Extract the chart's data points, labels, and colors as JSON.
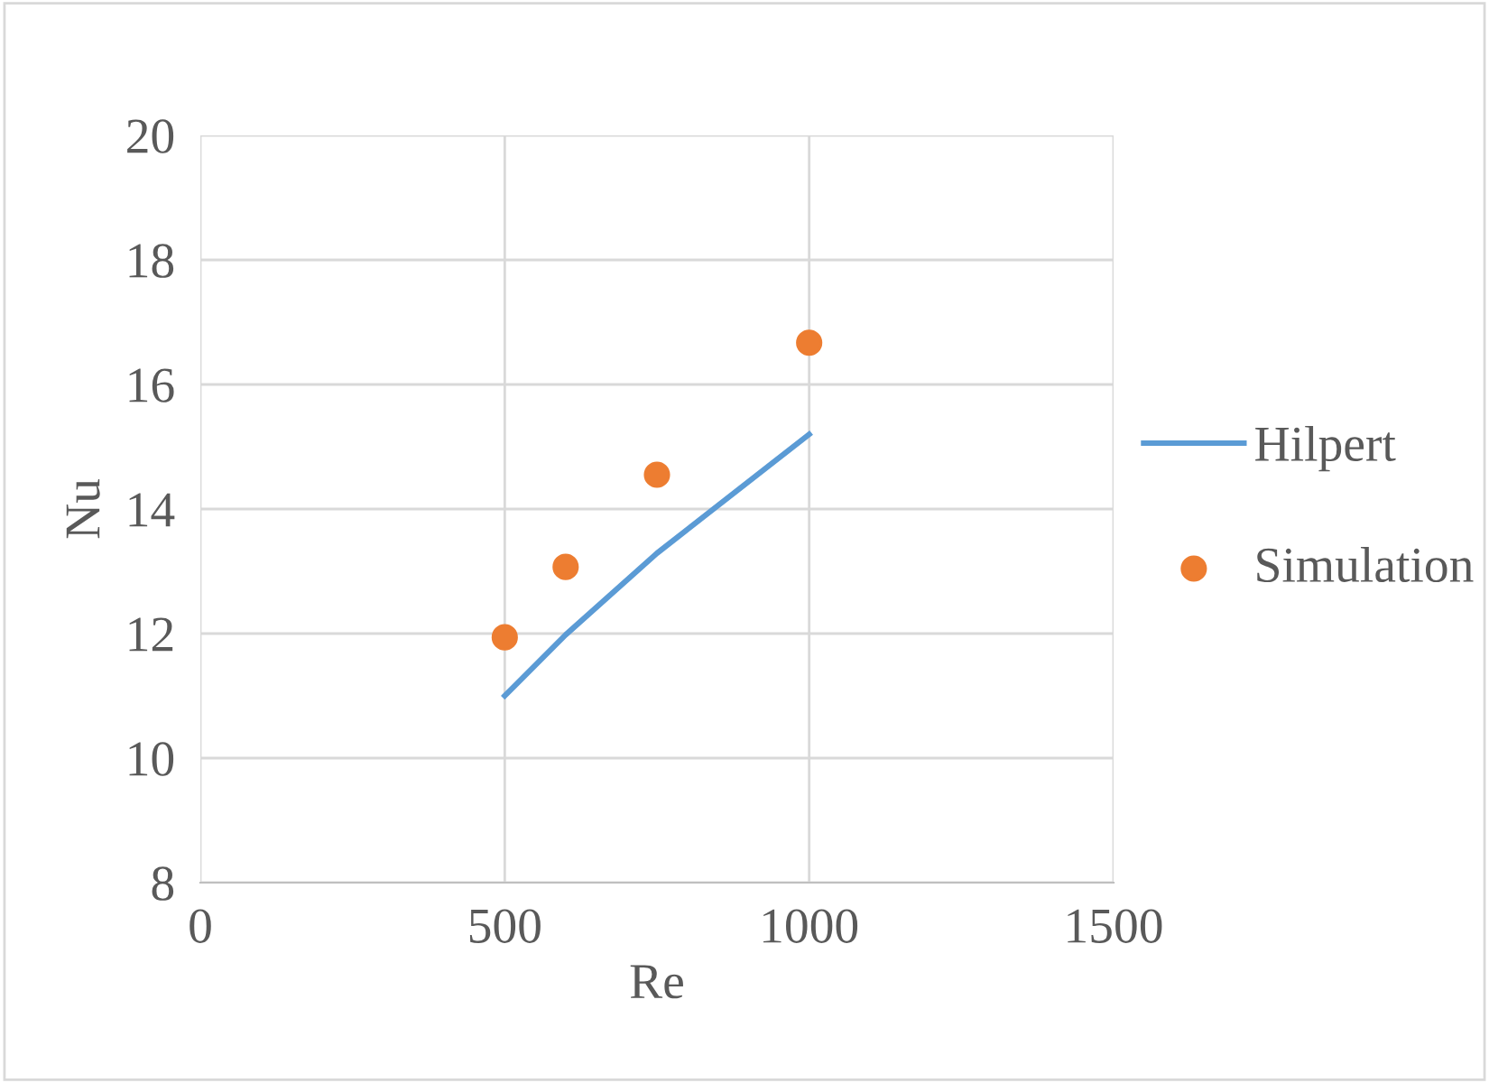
{
  "chart_data": {
    "type": "scatter",
    "xlabel": "Re",
    "ylabel": "Nu",
    "xlim": [
      0,
      1500
    ],
    "xticks": [
      0,
      500,
      1000,
      1500
    ],
    "ylim": [
      8,
      20
    ],
    "yticks": [
      8,
      10,
      12,
      14,
      16,
      18,
      20
    ],
    "grid": true,
    "legend": "right",
    "series": [
      {
        "name": "Hilpert",
        "type": "line",
        "marker": "none",
        "color": "#5b9bd5",
        "x": [
          500,
          600,
          750,
          1000
        ],
        "values": [
          11.0,
          11.98,
          13.29,
          15.2
        ]
      },
      {
        "name": "Simulation",
        "marker": "circle",
        "color": "#ed7d31",
        "x": [
          500,
          600,
          750,
          1000
        ],
        "values": [
          11.94,
          13.07,
          14.55,
          16.67
        ]
      }
    ]
  }
}
